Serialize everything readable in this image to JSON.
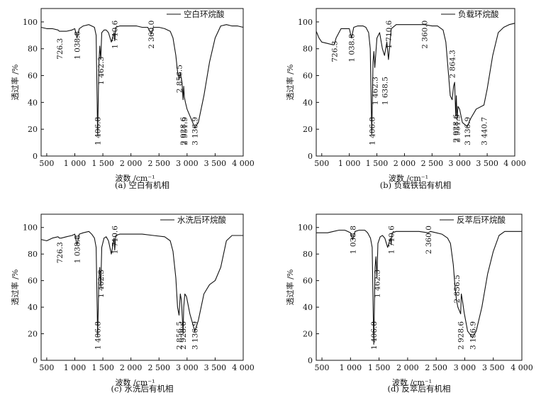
{
  "figure": {
    "caption_prefix": ""
  },
  "chart_data": [
    {
      "type": "line",
      "caption": "(a) 空白有机相",
      "legend": "空白环烷酸",
      "xlabel": "波数 /cm⁻¹",
      "ylabel": "透过率 /%",
      "xlim": [
        400,
        4000
      ],
      "ylim": [
        0,
        110
      ],
      "xticks": [
        500,
        1000,
        1500,
        2000,
        2500,
        3000,
        3500,
        4000
      ],
      "xtick_labels": [
        "500",
        "1 000",
        "1 500",
        "2 000",
        "2 500",
        "3 000",
        "3 500",
        "4 000"
      ],
      "yticks": [
        0,
        20,
        40,
        60,
        80,
        100
      ],
      "series": [
        {
          "name": "空白环烷酸",
          "x": [
            400,
            500,
            600,
            700,
            726.3,
            760,
            850,
            950,
            1000,
            1038.8,
            1080,
            1150,
            1250,
            1350,
            1380,
            1406.8,
            1430,
            1445,
            1462.3,
            1480,
            1520,
            1560,
            1600,
            1650,
            1700,
            1710.6,
            1730,
            1800,
            1900,
            2000,
            2100,
            2200,
            2300,
            2360,
            2400,
            2500,
            2600,
            2700,
            2750,
            2800,
            2830,
            2856.5,
            2880,
            2910,
            2928.6,
            2940,
            2951.9,
            2970,
            3000,
            3050,
            3100,
            3136.9,
            3200,
            3300,
            3400,
            3500,
            3600,
            3700,
            3800,
            3900,
            4000
          ],
          "y": [
            96,
            95,
            95,
            94,
            93,
            93,
            93,
            94,
            95,
            88,
            95,
            97,
            98,
            96,
            90,
            15,
            70,
            82,
            72,
            92,
            94,
            94,
            92,
            85,
            92,
            86,
            96,
            97,
            97,
            97,
            97,
            96,
            96,
            91,
            96,
            96,
            95,
            93,
            88,
            75,
            63,
            57,
            62,
            55,
            42,
            52,
            44,
            40,
            35,
            30,
            25,
            21,
            25,
            45,
            70,
            88,
            97,
            98,
            97,
            97,
            96
          ]
        }
      ],
      "annotations": [
        {
          "label": "726.3",
          "x": 726.3
        },
        {
          "label": "1 038.8",
          "x": 1038.8
        },
        {
          "label": "1 406.8",
          "x": 1406.8
        },
        {
          "label": "1 462.3",
          "x": 1462.3
        },
        {
          "label": "1 710.6",
          "x": 1710.6
        },
        {
          "label": "2 360.0",
          "x": 2360.0
        },
        {
          "label": "2 856.5",
          "x": 2856.5
        },
        {
          "label": "2 928.6",
          "x": 2928.6
        },
        {
          "label": "2 951.9",
          "x": 2951.9
        },
        {
          "label": "3 136.9",
          "x": 3136.9
        }
      ]
    },
    {
      "type": "line",
      "caption": "(b) 负载铁铝有机相",
      "legend": "负载环烷酸",
      "xlabel": "波数 /cm⁻¹",
      "ylabel": "透过率 /%",
      "xlim": [
        400,
        4000
      ],
      "ylim": [
        0,
        110
      ],
      "xticks": [
        500,
        1000,
        1500,
        2000,
        2500,
        3000,
        3500,
        4000
      ],
      "xtick_labels": [
        "500",
        "1 000",
        "1 500",
        "2 000",
        "2 500",
        "3 000",
        "3 500",
        "4 000"
      ],
      "yticks": [
        0,
        20,
        40,
        60,
        80,
        100
      ],
      "series": [
        {
          "name": "负载环烷酸",
          "x": [
            400,
            450,
            500,
            600,
            700,
            726.3,
            760,
            850,
            950,
            1000,
            1038.8,
            1080,
            1150,
            1250,
            1300,
            1350,
            1380,
            1406.8,
            1430,
            1445,
            1462.3,
            1500,
            1550,
            1600,
            1638.5,
            1680,
            1710.6,
            1760,
            1850,
            2000,
            2200,
            2360,
            2500,
            2600,
            2700,
            2750,
            2800,
            2830,
            2864.3,
            2890,
            2910,
            2928.6,
            2940,
            2951.9,
            2970,
            3000,
            3050,
            3136.9,
            3200,
            3300,
            3440.7,
            3500,
            3600,
            3700,
            3800,
            3900,
            4000
          ],
          "y": [
            93,
            88,
            85,
            84,
            83,
            83,
            88,
            95,
            95,
            95,
            88,
            96,
            97,
            97,
            96,
            92,
            80,
            16,
            70,
            78,
            66,
            88,
            92,
            80,
            75,
            85,
            72,
            95,
            98,
            98,
            98,
            98,
            97,
            97,
            94,
            85,
            60,
            45,
            42,
            52,
            55,
            30,
            45,
            27,
            37,
            35,
            25,
            22,
            28,
            35,
            38,
            50,
            75,
            92,
            96,
            98,
            99
          ]
        }
      ],
      "annotations": [
        {
          "label": "726.3",
          "x": 726.3
        },
        {
          "label": "1 038.8",
          "x": 1038.8
        },
        {
          "label": "1 406.8",
          "x": 1406.8
        },
        {
          "label": "1 462.3",
          "x": 1462.3
        },
        {
          "label": "1 638.5",
          "x": 1638.5
        },
        {
          "label": "1 710.6",
          "x": 1710.6
        },
        {
          "label": "2 360.0",
          "x": 2360.0
        },
        {
          "label": "2 864.3",
          "x": 2864.3
        },
        {
          "label": "2 928.6",
          "x": 2928.6
        },
        {
          "label": "2 951.9",
          "x": 2951.9
        },
        {
          "label": "3 136.9",
          "x": 3136.9
        },
        {
          "label": "3 440.7",
          "x": 3440.7
        }
      ]
    },
    {
      "type": "line",
      "caption": "(c) 水洗后有机相",
      "legend": "水洗后环烷酸",
      "xlabel": "波数 /cm⁻¹",
      "ylabel": "透过率 /%",
      "xlim": [
        400,
        4000
      ],
      "ylim": [
        0,
        110
      ],
      "xticks": [
        500,
        1000,
        1500,
        2000,
        2500,
        3000,
        3500,
        4000
      ],
      "xtick_labels": [
        "500",
        "1 000",
        "1 500",
        "2 000",
        "2 500",
        "3 000",
        "3 500",
        "4 000"
      ],
      "yticks": [
        0,
        20,
        40,
        60,
        80,
        100
      ],
      "series": [
        {
          "name": "水洗后环烷酸",
          "x": [
            400,
            500,
            600,
            700,
            726.3,
            760,
            850,
            950,
            1000,
            1038.8,
            1080,
            1150,
            1250,
            1300,
            1350,
            1380,
            1406.8,
            1430,
            1445,
            1462.3,
            1480,
            1520,
            1560,
            1600,
            1650,
            1700,
            1710.6,
            1730,
            1800,
            1900,
            2000,
            2200,
            2400,
            2600,
            2700,
            2750,
            2800,
            2830,
            2856.5,
            2880,
            2900,
            2928.6,
            2940,
            2960,
            2990,
            3050,
            3136.9,
            3200,
            3300,
            3400,
            3500,
            3600,
            3700,
            3800,
            3900,
            4000
          ],
          "y": [
            91,
            90,
            92,
            93,
            92,
            92,
            93,
            94,
            95,
            87,
            95,
            96,
            97,
            95,
            92,
            85,
            18,
            62,
            70,
            55,
            85,
            92,
            93,
            90,
            80,
            92,
            83,
            94,
            95,
            95,
            95,
            95,
            94,
            93,
            90,
            82,
            62,
            40,
            34,
            50,
            45,
            20,
            40,
            50,
            48,
            35,
            22,
            30,
            50,
            57,
            60,
            70,
            90,
            94,
            94,
            94
          ]
        }
      ],
      "annotations": [
        {
          "label": "726.3",
          "x": 726.3
        },
        {
          "label": "1 038.8",
          "x": 1038.8
        },
        {
          "label": "1 406.8",
          "x": 1406.8
        },
        {
          "label": "1 462.3",
          "x": 1462.3
        },
        {
          "label": "1 710.6",
          "x": 1710.6
        },
        {
          "label": "2 856.5",
          "x": 2856.5
        },
        {
          "label": "2 928.6",
          "x": 2928.6
        },
        {
          "label": "3 136.9",
          "x": 3136.9
        }
      ]
    },
    {
      "type": "line",
      "caption": "(d) 反萃后有机相",
      "legend": "反萃后环烷酸",
      "xlabel": "波数 /cm⁻¹",
      "ylabel": "透过率 /%",
      "xlim": [
        400,
        4000
      ],
      "ylim": [
        0,
        110
      ],
      "xticks": [
        500,
        1000,
        1500,
        2000,
        2500,
        3000,
        3500,
        4000
      ],
      "xtick_labels": [
        "500",
        "1 000",
        "1 500",
        "2 000",
        "2 500",
        "3 000",
        "3 500",
        "4 000"
      ],
      "yticks": [
        0,
        20,
        40,
        60,
        80,
        100
      ],
      "series": [
        {
          "name": "反萃后环烷酸",
          "x": [
            400,
            500,
            600,
            700,
            800,
            900,
            950,
            1000,
            1038.8,
            1080,
            1150,
            1250,
            1300,
            1350,
            1380,
            1406.8,
            1430,
            1445,
            1462.3,
            1480,
            1520,
            1560,
            1600,
            1650,
            1700,
            1710.6,
            1730,
            1800,
            1900,
            2000,
            2200,
            2360,
            2400,
            2500,
            2600,
            2700,
            2750,
            2800,
            2830,
            2856.5,
            2880,
            2900,
            2928.6,
            2940,
            2960,
            2990,
            3050,
            3136.9,
            3200,
            3300,
            3400,
            3500,
            3600,
            3700,
            3800,
            3900,
            4000
          ],
          "y": [
            96,
            96,
            96,
            97,
            98,
            98,
            97,
            96,
            91,
            97,
            98,
            98,
            96,
            92,
            85,
            12,
            70,
            78,
            62,
            88,
            93,
            94,
            92,
            85,
            92,
            87,
            96,
            97,
            97,
            97,
            97,
            96,
            97,
            96,
            95,
            92,
            88,
            72,
            55,
            45,
            40,
            38,
            35,
            50,
            45,
            36,
            22,
            17,
            22,
            40,
            65,
            82,
            94,
            97,
            97,
            97,
            97
          ]
        }
      ],
      "annotations": [
        {
          "label": "1 038.8",
          "x": 1038.8
        },
        {
          "label": "1 406.8",
          "x": 1406.8
        },
        {
          "label": "1 462.3",
          "x": 1462.3
        },
        {
          "label": "1 710.6",
          "x": 1710.6
        },
        {
          "label": "2 360.0",
          "x": 2360.0
        },
        {
          "label": "2 856.5",
          "x": 2856.5
        },
        {
          "label": "2 928.6",
          "x": 2928.6
        },
        {
          "label": "3 136.9",
          "x": 3136.9
        }
      ]
    }
  ]
}
